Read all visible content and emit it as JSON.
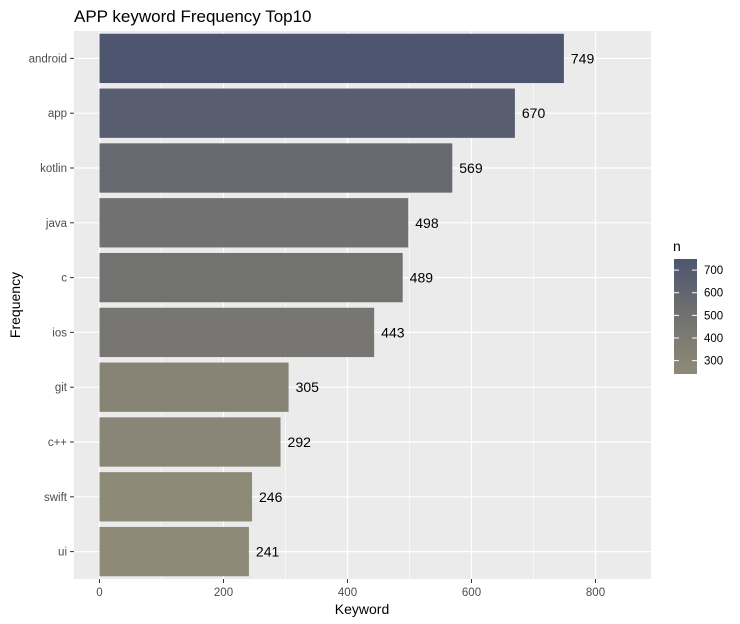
{
  "chart_data": {
    "type": "bar",
    "orientation": "horizontal",
    "title": "APP keyword Frequency Top10",
    "xlabel": "Keyword",
    "ylabel": "Frequency",
    "categories": [
      "android",
      "app",
      "kotlin",
      "java",
      "c",
      "ios",
      "git",
      "c++",
      "swift",
      "ui"
    ],
    "values": [
      749,
      670,
      569,
      498,
      489,
      443,
      305,
      292,
      246,
      241
    ],
    "xlim": [
      0,
      890
    ],
    "xticks": [
      0,
      200,
      400,
      600,
      800
    ],
    "grid": true,
    "legend": {
      "title": "n",
      "placement": "right",
      "type": "colorbar",
      "range": [
        241,
        749
      ],
      "ticks": [
        300,
        400,
        500,
        600,
        700
      ]
    },
    "colors": {
      "low": "#8f8a78",
      "mid": "#717171",
      "high": "#4d566e",
      "panel": "#ebebeb",
      "grid": "#ffffff"
    }
  }
}
